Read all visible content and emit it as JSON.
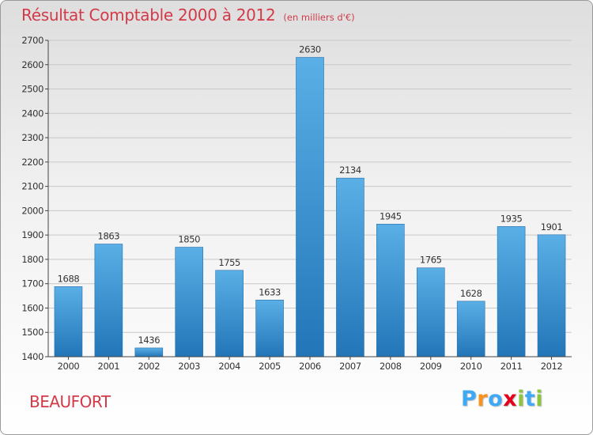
{
  "chart_data": {
    "type": "bar",
    "title": "Résultat Comptable 2000 à 2012",
    "subtitle": "(en milliers d'€)",
    "categories": [
      "2000",
      "2001",
      "2002",
      "2003",
      "2004",
      "2005",
      "2006",
      "2007",
      "2008",
      "2009",
      "2010",
      "2011",
      "2012"
    ],
    "values": [
      1688,
      1863,
      1436,
      1850,
      1755,
      1633,
      2630,
      2134,
      1945,
      1765,
      1628,
      1935,
      1901
    ],
    "ylim": [
      1400,
      2700
    ],
    "yticks": [
      1400,
      1500,
      1600,
      1700,
      1800,
      1900,
      2000,
      2100,
      2200,
      2300,
      2400,
      2500,
      2600,
      2700
    ],
    "xlabel": "",
    "ylabel": "",
    "grid": true,
    "bar_color": "#3d97d8",
    "grid_color": "#c8c8c8"
  },
  "commune": "BEAUFORT",
  "logo": {
    "letters": [
      "P",
      "r",
      "o",
      "x",
      "i",
      "t",
      "i"
    ],
    "colors": [
      "#3fa9f5",
      "#f7931e",
      "#3fa9f5",
      "#e2001a",
      "#8cc63f",
      "#3fa9f5",
      "#8cc63f"
    ]
  }
}
